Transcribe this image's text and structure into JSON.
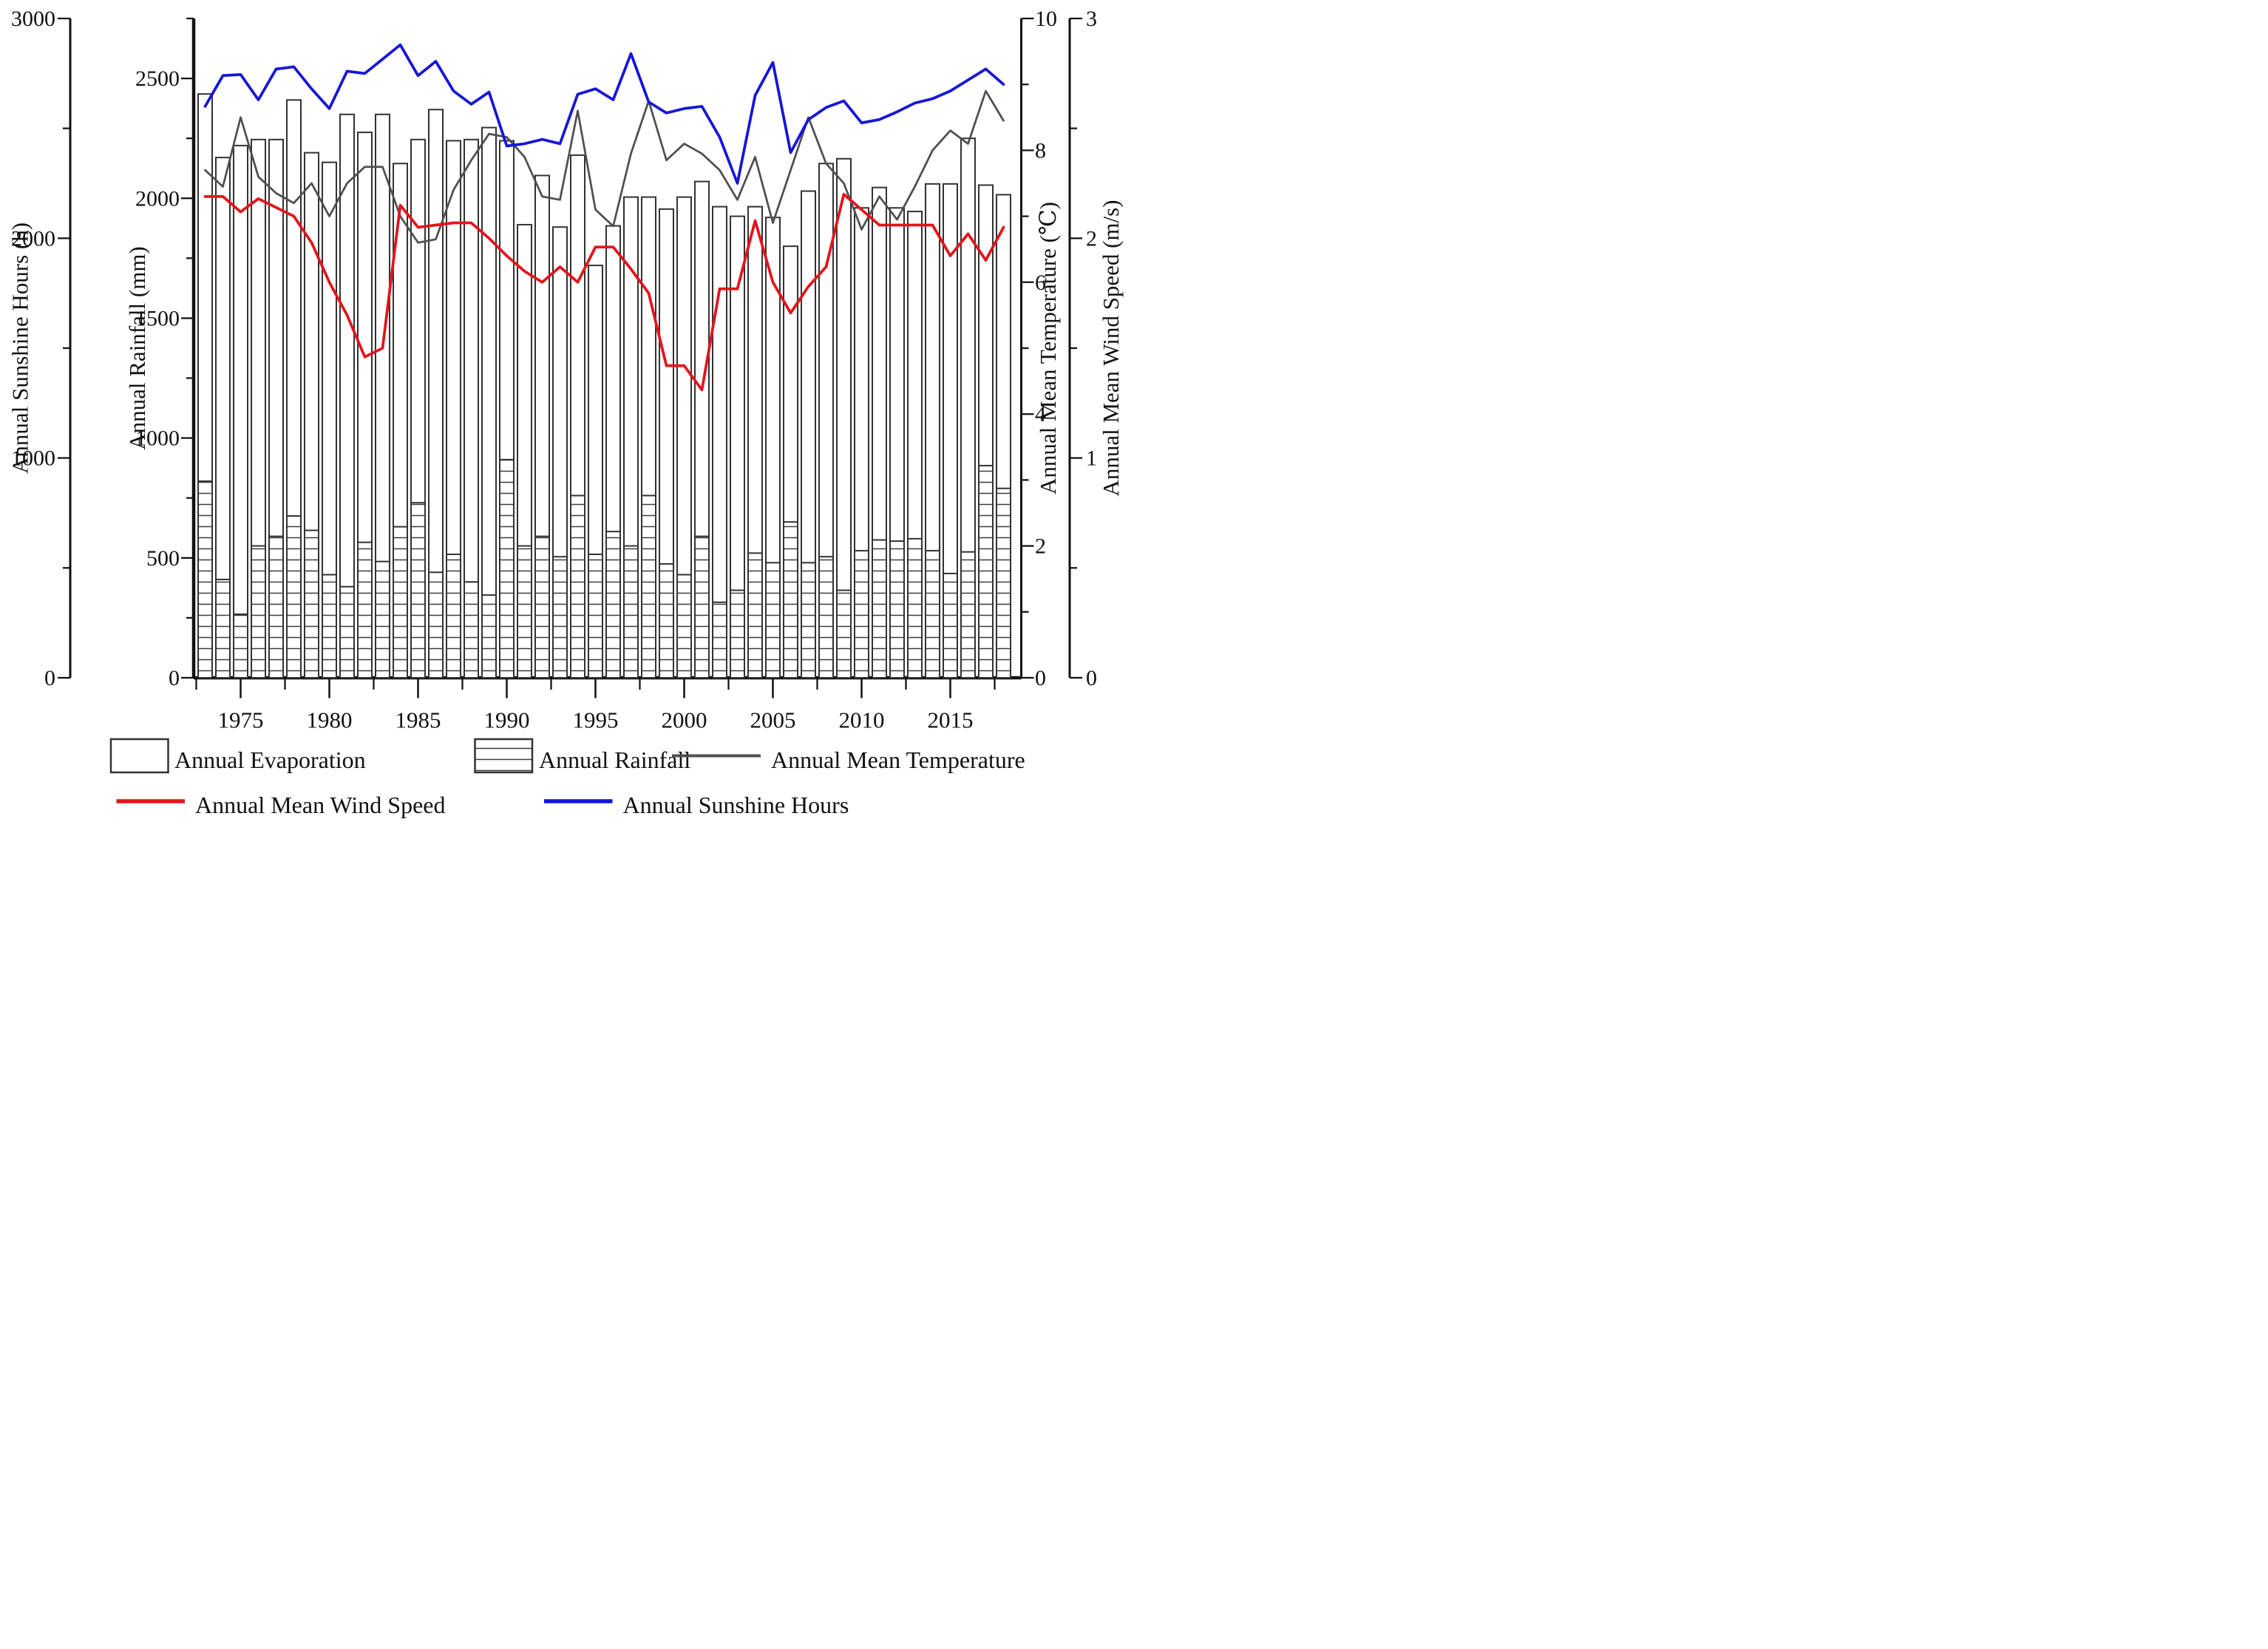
{
  "figure_type": "multi-axis climate chart",
  "chart_data": {
    "type": "bar",
    "title": "",
    "x": [
      1973,
      1974,
      1975,
      1976,
      1977,
      1978,
      1979,
      1980,
      1981,
      1982,
      1983,
      1984,
      1985,
      1986,
      1987,
      1988,
      1989,
      1990,
      1991,
      1992,
      1993,
      1994,
      1995,
      1996,
      1997,
      1998,
      1999,
      2000,
      2001,
      2002,
      2003,
      2004,
      2005,
      2006,
      2007,
      2008,
      2009,
      2010,
      2011,
      2012,
      2013,
      2014,
      2015,
      2016,
      2017,
      2018
    ],
    "series": [
      {
        "name": "Annual Evaporation",
        "type": "bar",
        "style": "open",
        "axis": "rainfall",
        "values": [
          2435,
          2170,
          2220,
          2245,
          2245,
          2410,
          2190,
          2150,
          2350,
          2275,
          2350,
          2145,
          2245,
          2370,
          2240,
          2245,
          2295,
          2240,
          1890,
          2095,
          1880,
          2180,
          1720,
          1885,
          2005,
          2005,
          1955,
          2005,
          2070,
          1965,
          1925,
          1965,
          1920,
          1800,
          2030,
          2145,
          2165,
          1960,
          2045,
          1960,
          1945,
          2060,
          2060,
          2250,
          2055,
          2015
        ]
      },
      {
        "name": "Annual Rainfall",
        "type": "bar",
        "style": "hatched",
        "axis": "rainfall",
        "values": [
          820,
          410,
          265,
          550,
          590,
          675,
          615,
          430,
          380,
          565,
          485,
          630,
          730,
          440,
          515,
          400,
          345,
          910,
          550,
          590,
          505,
          760,
          515,
          610,
          550,
          760,
          475,
          430,
          590,
          315,
          365,
          520,
          480,
          650,
          480,
          505,
          365,
          530,
          575,
          570,
          580,
          530,
          435,
          525,
          885,
          790
        ]
      },
      {
        "name": "Annual Mean Temperature",
        "type": "line",
        "color": "#4f4f4f",
        "axis": "temperature",
        "values": [
          7.7,
          7.45,
          8.5,
          7.6,
          7.35,
          7.2,
          7.5,
          7.0,
          7.5,
          7.75,
          7.75,
          7.0,
          6.6,
          6.65,
          7.4,
          7.85,
          8.25,
          8.2,
          7.9,
          7.3,
          7.25,
          8.6,
          7.1,
          6.85,
          7.95,
          8.75,
          7.85,
          8.1,
          7.95,
          7.7,
          7.25,
          7.9,
          6.9,
          7.7,
          8.5,
          7.8,
          7.5,
          6.8,
          7.3,
          6.95,
          7.45,
          8.0,
          8.3,
          8.1,
          8.9,
          8.45
        ]
      },
      {
        "name": "Annual Mean Wind Speed",
        "type": "line",
        "color": "#e3141c",
        "axis": "wind",
        "values": [
          2.19,
          2.19,
          2.12,
          2.18,
          2.14,
          2.1,
          1.98,
          1.8,
          1.65,
          1.46,
          1.5,
          2.15,
          2.05,
          2.06,
          2.07,
          2.07,
          2.0,
          1.92,
          1.85,
          1.8,
          1.87,
          1.8,
          1.96,
          1.96,
          1.86,
          1.75,
          1.42,
          1.42,
          1.31,
          1.77,
          1.77,
          2.08,
          1.8,
          1.66,
          1.78,
          1.87,
          2.2,
          2.13,
          2.06,
          2.06,
          2.06,
          2.06,
          1.92,
          2.02,
          1.9,
          2.05
        ]
      },
      {
        "name": "Annual Sunshine Hours",
        "type": "line",
        "color": "#1616d9",
        "axis": "sunshine",
        "values": [
          2600,
          2740,
          2745,
          2630,
          2770,
          2780,
          2680,
          2590,
          2760,
          2750,
          2815,
          2880,
          2740,
          2805,
          2670,
          2610,
          2665,
          2420,
          2430,
          2450,
          2430,
          2655,
          2680,
          2630,
          2840,
          2620,
          2570,
          2590,
          2600,
          2460,
          2250,
          2650,
          2800,
          2390,
          2540,
          2595,
          2625,
          2525,
          2540,
          2575,
          2615,
          2635,
          2670,
          2720,
          2770,
          2700
        ]
      }
    ],
    "axes": {
      "sunshine": {
        "title": "Annual Sunshine Hours (h)",
        "side": "outer-left",
        "range": [
          0,
          3000
        ],
        "major_ticks": [
          0,
          1000,
          2000,
          3000
        ],
        "minor_step": 500
      },
      "rainfall": {
        "title": "Annual Rainfall (mm)",
        "side": "inner-left",
        "range": [
          0,
          2750
        ],
        "major_ticks": [
          0,
          500,
          1000,
          1500,
          2000,
          2500
        ],
        "minor_step": 250
      },
      "temperature": {
        "title": "Annual Mean Temperature (℃)",
        "side": "inner-right",
        "range": [
          0,
          10
        ],
        "major_ticks": [
          0,
          2,
          4,
          6,
          8,
          10
        ],
        "minor_step": 1
      },
      "wind": {
        "title": "Annual Mean Wind Speed (m/s)",
        "side": "outer-right",
        "range": [
          0,
          3
        ],
        "major_ticks": [
          0,
          1,
          2,
          3
        ],
        "minor_step": 0.5
      }
    },
    "x_axis": {
      "major_tick_years": [
        1975,
        1980,
        1985,
        1990,
        1995,
        2000,
        2005,
        2010,
        2015
      ],
      "minor_tick_years": [
        1972.5,
        1977.5,
        1982.5,
        1987.5,
        1992.5,
        1997.5,
        2002.5,
        2007.5,
        2012.5,
        2017.5
      ],
      "grid": false
    },
    "legend_position": "bottom"
  },
  "legend": {
    "evaporation_label": "Annual Evaporation",
    "rainfall_label": "Annual Rainfall",
    "temperature_label": "Annual Mean Temperature",
    "wind_label": "Annual Mean Wind Speed",
    "sunshine_label": "Annual Sunshine Hours"
  },
  "colors": {
    "sunshine_line": "#1616d9",
    "wind_line": "#e3141c",
    "temperature_line": "#4f4f4f",
    "bar_outline": "#323232",
    "background": "#ffffff"
  }
}
